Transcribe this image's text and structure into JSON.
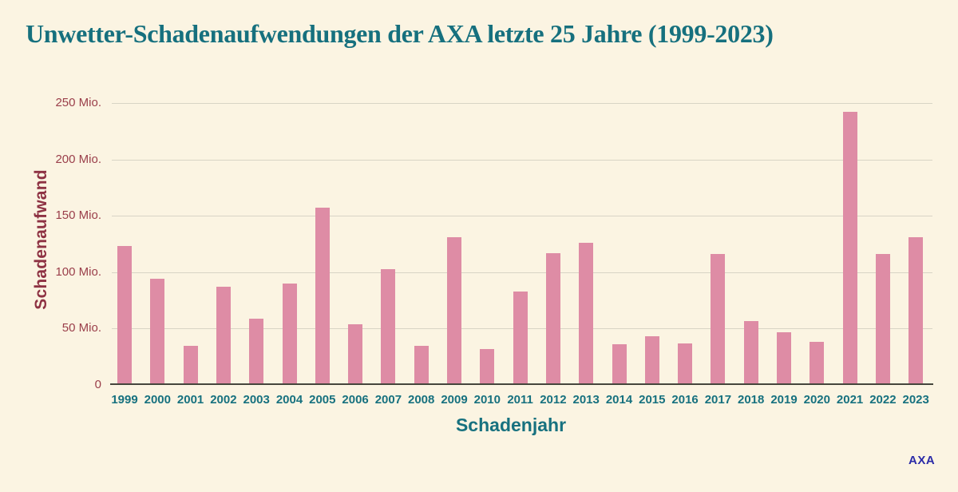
{
  "chart_data": {
    "type": "bar",
    "title": "Unwetter-Schadenaufwendungen der AXA letzte 25 Jahre (1999-2023)",
    "xlabel": "Schadenjahr",
    "ylabel": "Schadenaufwand",
    "categories": [
      "1999",
      "2000",
      "2001",
      "2002",
      "2003",
      "2004",
      "2005",
      "2006",
      "2007",
      "2008",
      "2009",
      "2010",
      "2011",
      "2012",
      "2013",
      "2014",
      "2015",
      "2016",
      "2017",
      "2018",
      "2019",
      "2020",
      "2021",
      "2022",
      "2023"
    ],
    "values": [
      123,
      94,
      35,
      87,
      59,
      90,
      157,
      54,
      103,
      35,
      131,
      32,
      83,
      117,
      126,
      36,
      43,
      37,
      116,
      57,
      47,
      38,
      242,
      116,
      131
    ],
    "unit": "Mio.",
    "ylim": [
      0,
      250
    ],
    "ytick_values": [
      0,
      50,
      100,
      150,
      200,
      250
    ],
    "ytick_labels": [
      "0",
      "50 Mio.",
      "100 Mio.",
      "150 Mio.",
      "200 Mio.",
      "250 Mio."
    ],
    "grid": true,
    "legend": "none"
  },
  "branding": {
    "logo_text": "AXA"
  },
  "colors": {
    "background": "#FBF4E2",
    "title_teal": "#16707E",
    "axis_label_teal": "#17717F",
    "ytick_maroon": "#9A3E4A",
    "ylabel_maroon": "#8E3243",
    "bar_pink": "#DE8CA5",
    "gridline": "#D8D4C5",
    "axis_line": "#45453C",
    "logo_blue": "#2B2BA8"
  }
}
